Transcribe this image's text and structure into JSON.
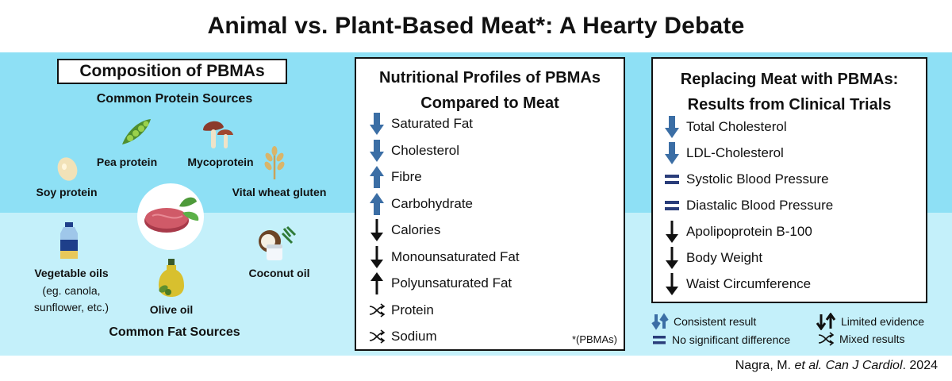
{
  "title": "Animal vs. Plant-Based Meat*: A Hearty Debate",
  "composition": {
    "title": "Composition of PBMAs",
    "protein_heading": "Common Protein Sources",
    "fat_heading": "Common Fat Sources",
    "proteins": [
      "Pea protein",
      "Mycoprotein",
      "Soy protein",
      "Vital wheat gluten"
    ],
    "fats": {
      "vegetable_oils": "Vegetable oils",
      "vegetable_oils_note_1": "(eg. canola,",
      "vegetable_oils_note_2": "sunflower, etc.)",
      "olive_oil": "Olive oil",
      "coconut_oil": "Coconut oil"
    }
  },
  "nutrition": {
    "title_line1": "Nutritional Profiles of PBMAs",
    "title_line2": "Compared to Meat",
    "items": [
      {
        "label": "Saturated Fat",
        "mark": "consistent-down"
      },
      {
        "label": "Cholesterol",
        "mark": "consistent-down"
      },
      {
        "label": "Fibre",
        "mark": "consistent-up"
      },
      {
        "label": "Carbohydrate",
        "mark": "consistent-up"
      },
      {
        "label": "Calories",
        "mark": "limited-down"
      },
      {
        "label": "Monounsaturated Fat",
        "mark": "limited-down"
      },
      {
        "label": "Polyunsaturated Fat",
        "mark": "limited-up"
      },
      {
        "label": "Protein",
        "mark": "mixed"
      },
      {
        "label": "Sodium",
        "mark": "mixed"
      }
    ],
    "footnote": "*(PBMAs)"
  },
  "trials": {
    "title_line1": "Replacing Meat with PBMAs:",
    "title_line2": "Results from Clinical Trials",
    "items": [
      {
        "label": "Total Cholesterol",
        "mark": "consistent-down"
      },
      {
        "label": "LDL-Cholesterol",
        "mark": "consistent-down"
      },
      {
        "label": "Systolic Blood Pressure",
        "mark": "no-difference"
      },
      {
        "label": "Diastalic Blood Pressure",
        "mark": "no-difference"
      },
      {
        "label": "Apolipoprotein B-100",
        "mark": "limited-down"
      },
      {
        "label": "Body Weight",
        "mark": "limited-down"
      },
      {
        "label": "Waist Circumference",
        "mark": "limited-down"
      }
    ]
  },
  "legend": {
    "consistent": "Consistent result",
    "limited": "Limited evidence",
    "no_difference": "No significant difference",
    "mixed": "Mixed results"
  },
  "citation": {
    "authors": "Nagra, M.",
    "etal": "et al.",
    "journal": "Can J Cardiol",
    "year": ". 2024"
  },
  "colors": {
    "band_top": "#8ee0f5",
    "band_bottom": "#c4f0fa",
    "consistent_arrow": "#3b6ea5",
    "no_difference": "#2a3d7a",
    "limited_arrow": "#111111"
  },
  "icons": [
    "pea-pod-icon",
    "mushroom-icon",
    "soy-bean-icon",
    "wheat-icon",
    "steak-icon",
    "oil-bottle-icon",
    "olive-oil-icon",
    "coconut-icon"
  ]
}
